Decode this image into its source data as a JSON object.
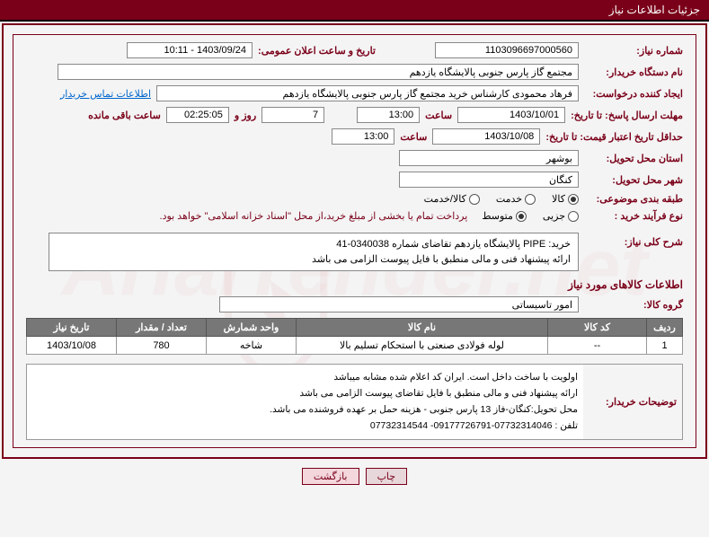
{
  "header": {
    "title": "جزئیات اطلاعات نیاز"
  },
  "need_number": {
    "label": "شماره نیاز:",
    "value": "1103096697000560"
  },
  "announce": {
    "label": "تاریخ و ساعت اعلان عمومی:",
    "value": "1403/09/24 - 10:11"
  },
  "buyer_org": {
    "label": "نام دستگاه خریدار:",
    "value": "مجتمع گاز پارس جنوبی  پالایشگاه یازدهم"
  },
  "requester": {
    "label": "ایجاد کننده درخواست:",
    "value": "فرهاد محمودی کارشناس خرید مجتمع گاز پارس جنوبی  پالایشگاه یازدهم",
    "contact_link": "اطلاعات تماس خریدار"
  },
  "response_deadline": {
    "label": "مهلت ارسال پاسخ: تا تاریخ:",
    "date": "1403/10/01",
    "time_label": "ساعت",
    "time": "13:00",
    "days": "7",
    "days_suffix": "روز و",
    "remaining": "02:25:05",
    "remaining_suffix": "ساعت باقی مانده"
  },
  "price_validity": {
    "label": "حداقل تاریخ اعتبار قیمت: تا تاریخ:",
    "date": "1403/10/08",
    "time_label": "ساعت",
    "time": "13:00"
  },
  "province": {
    "label": "استان محل تحویل:",
    "value": "بوشهر"
  },
  "city": {
    "label": "شهر محل تحویل:",
    "value": "کنگان"
  },
  "category": {
    "label": "طبقه بندی موضوعی:",
    "options": [
      "کالا",
      "خدمت",
      "کالا/خدمت"
    ],
    "selected": 0
  },
  "purchase_type": {
    "label": "نوع فرآیند خرید :",
    "options": [
      "جزیی",
      "متوسط"
    ],
    "selected": 1,
    "note": "پرداخت تمام یا بخشی از مبلغ خرید،از محل \"اسناد خزانه اسلامی\" خواهد بود."
  },
  "general_desc": {
    "label": "شرح کلی نیاز:",
    "line1": "خرید:   PIPE  پالایشگاه یازدهم تقاضای شماره 0340038-41",
    "line2": "ارائه پیشنهاد فنی و مالی منطبق با فایل پیوست الزامی می باشد"
  },
  "items_section_title": "اطلاعات کالاهای مورد نیاز",
  "group": {
    "label": "گروه کالا:",
    "value": "امور تاسیساتی"
  },
  "items_table": {
    "headers": [
      "ردیف",
      "کد کالا",
      "نام کالا",
      "واحد شمارش",
      "تعداد / مقدار",
      "تاریخ نیاز"
    ],
    "rows": [
      [
        "1",
        "--",
        "لوله فولادی صنعتی با استحکام تسلیم بالا",
        "شاخه",
        "780",
        "1403/10/08"
      ]
    ],
    "col_widths": [
      "40px",
      "110px",
      "auto",
      "100px",
      "100px",
      "100px"
    ]
  },
  "buyer_notes": {
    "label": "توضیحات خریدار:",
    "lines": [
      "اولویت با ساخت داخل است. ایران کد اعلام شده مشابه میباشد",
      "ارائه پیشنهاد فنی و مالی منطبق با فایل تقاضای پیوست الزامی می باشد",
      "محل تحویل:کنگان-فاز 13 پارس جنوبی - هزینه حمل بر عهده فروشنده می باشد.",
      "تلفن : 07732314046-09177726791- 07732314544"
    ]
  },
  "footer": {
    "print": "چاپ",
    "back": "بازگشت"
  },
  "colors": {
    "primary": "#7a0019",
    "header_th_bg": "#777777",
    "link": "#0066cc",
    "bg": "#f4f4f4"
  }
}
